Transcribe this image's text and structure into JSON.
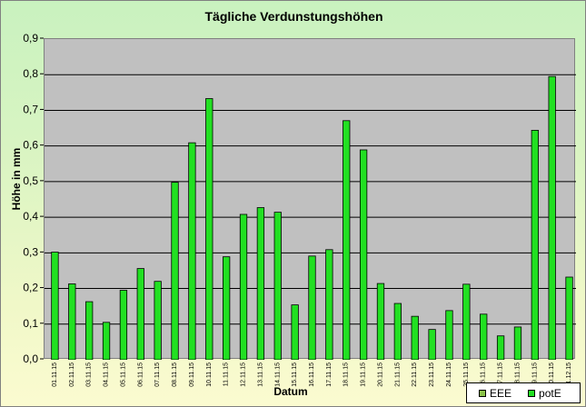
{
  "chart_data": {
    "type": "bar",
    "title": "Tägliche Verdunstungshöhen",
    "xlabel": "Datum",
    "ylabel": "Höhe in mm",
    "ylim": [
      0,
      0.9
    ],
    "yticks": [
      "0,0",
      "0,1",
      "0,2",
      "0,3",
      "0,4",
      "0,5",
      "0,6",
      "0,7",
      "0,8",
      "0,9"
    ],
    "grid": true,
    "legend_position": "bottom-right",
    "categories": [
      "01.11.15",
      "02.11.15",
      "03.11.15",
      "04.11.15",
      "05.11.15",
      "06.11.15",
      "07.11.15",
      "08.11.15",
      "09.11.15",
      "10.11.15",
      "11.11.15",
      "12.11.15",
      "13.11.15",
      "14.11.15",
      "15.11.15",
      "16.11.15",
      "17.11.15",
      "18.11.15",
      "19.11.15",
      "20.11.15",
      "21.11.15",
      "22.11.15",
      "23.11.15",
      "24.11.15",
      "25.11.15",
      "26.11.15",
      "27.11.15",
      "28.11.15",
      "29.11.15",
      "30.11.15",
      "01.12.15"
    ],
    "series": [
      {
        "name": "EEE",
        "color": "#8bc34a",
        "values": [
          0,
          0,
          0,
          0,
          0,
          0,
          0,
          0,
          0,
          0,
          0,
          0,
          0,
          0,
          0,
          0,
          0,
          0,
          0,
          0,
          0,
          0,
          0,
          0,
          0,
          0,
          0,
          0,
          0,
          0,
          0
        ]
      },
      {
        "name": "potE",
        "color": "#22e022",
        "values": [
          0.302,
          0.213,
          0.163,
          0.105,
          0.195,
          0.256,
          0.22,
          0.498,
          0.609,
          0.733,
          0.289,
          0.408,
          0.427,
          0.414,
          0.154,
          0.291,
          0.309,
          0.671,
          0.589,
          0.214,
          0.158,
          0.122,
          0.085,
          0.138,
          0.212,
          0.128,
          0.067,
          0.092,
          0.644,
          0.795,
          0.232
        ]
      }
    ]
  }
}
